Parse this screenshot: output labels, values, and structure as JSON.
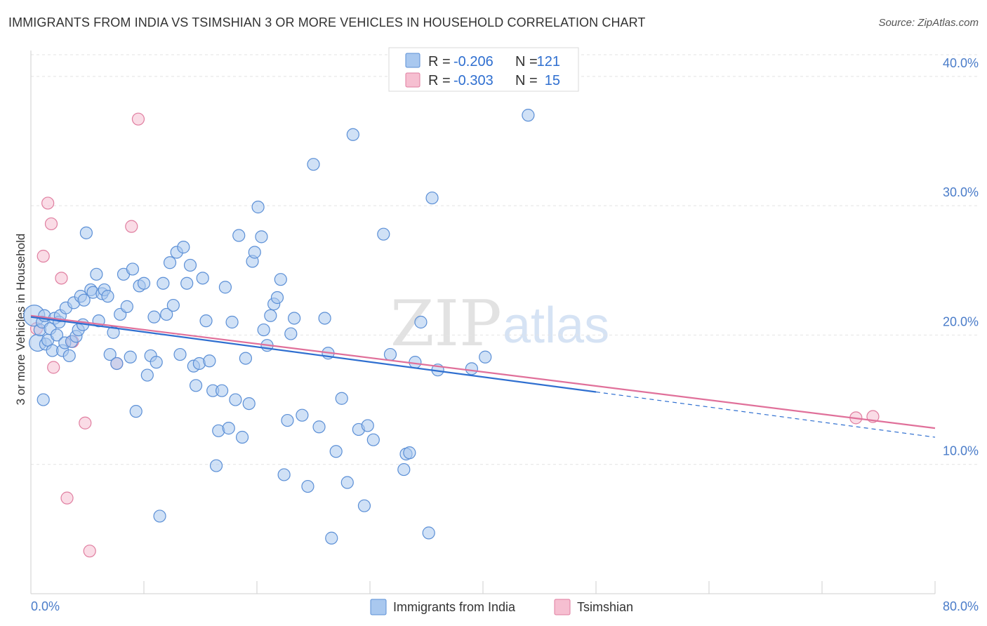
{
  "title": "IMMIGRANTS FROM INDIA VS TSIMSHIAN 3 OR MORE VEHICLES IN HOUSEHOLD CORRELATION CHART",
  "source": "Source: ZipAtlas.com",
  "watermark": {
    "zip": "ZIP",
    "atlas": "atlas"
  },
  "colors": {
    "india_fill": "#a9c8ef",
    "india_stroke": "#5b8fd6",
    "india_line": "#2f6fd0",
    "tsim_fill": "#f6bfd1",
    "tsim_stroke": "#e07ea0",
    "tsim_line": "#e0709a",
    "grid": "#e3e3e3",
    "axis_label": "#4a7cc9"
  },
  "stats_box": {
    "rows": [
      {
        "r_label": "R =",
        "r_value": "-0.206",
        "n_label": "N =",
        "n_value": "121"
      },
      {
        "r_label": "R =",
        "r_value": "-0.303",
        "n_label": "N =",
        "n_value": "15"
      }
    ]
  },
  "chart_data": {
    "type": "scatter",
    "xlabel": "",
    "ylabel": "3 or more Vehicles in Household",
    "xlim": [
      0,
      80
    ],
    "ylim": [
      0,
      42
    ],
    "x_tick_labels": [
      "0.0%",
      "80.0%"
    ],
    "y_ticks": [
      10,
      20,
      30,
      40
    ],
    "y_tick_labels": [
      "10.0%",
      "20.0%",
      "30.0%",
      "40.0%"
    ],
    "grid": true,
    "legend_position": "bottom-center",
    "legend": [
      "Immigrants from India",
      "Tsimshian"
    ],
    "series": [
      {
        "name": "Immigrants from India",
        "trend": {
          "x0": 0,
          "y0": 21.4,
          "x1": 50,
          "y1": 15.6,
          "dashed_to_x": 80,
          "dashed_to_y": 12.1
        },
        "points": [
          [
            0.3,
            21.5,
            3
          ],
          [
            0.6,
            19.4,
            2
          ],
          [
            0.8,
            20.4,
            1
          ],
          [
            1.0,
            21.0,
            1
          ],
          [
            1.1,
            15.0,
            1
          ],
          [
            1.2,
            21.5,
            1
          ],
          [
            1.3,
            19.3,
            1
          ],
          [
            1.5,
            19.6,
            1
          ],
          [
            1.7,
            20.5,
            1
          ],
          [
            1.9,
            18.8,
            1
          ],
          [
            2.1,
            21.3,
            1
          ],
          [
            2.3,
            20.0,
            1
          ],
          [
            2.5,
            21.0,
            1
          ],
          [
            2.6,
            21.5,
            1
          ],
          [
            2.8,
            18.8,
            1
          ],
          [
            3.0,
            19.4,
            1
          ],
          [
            3.1,
            22.1,
            1
          ],
          [
            3.4,
            18.4,
            1
          ],
          [
            3.6,
            19.5,
            1
          ],
          [
            3.8,
            22.5,
            1
          ],
          [
            4.0,
            19.9,
            1
          ],
          [
            4.2,
            20.4,
            1
          ],
          [
            4.4,
            23.0,
            1
          ],
          [
            4.6,
            20.8,
            1
          ],
          [
            4.7,
            22.7,
            1
          ],
          [
            4.9,
            27.9,
            1
          ],
          [
            5.3,
            23.5,
            1
          ],
          [
            5.5,
            23.3,
            1
          ],
          [
            5.8,
            24.7,
            1
          ],
          [
            6.0,
            21.1,
            1
          ],
          [
            6.3,
            23.2,
            1
          ],
          [
            6.5,
            23.5,
            1
          ],
          [
            6.8,
            23.0,
            1
          ],
          [
            7.0,
            18.5,
            1
          ],
          [
            7.3,
            20.2,
            1
          ],
          [
            7.6,
            17.8,
            1
          ],
          [
            7.9,
            21.6,
            1
          ],
          [
            8.2,
            24.7,
            1
          ],
          [
            8.5,
            22.2,
            1
          ],
          [
            8.8,
            18.3,
            1
          ],
          [
            9.0,
            25.1,
            1
          ],
          [
            9.3,
            14.1,
            1
          ],
          [
            9.6,
            23.8,
            1
          ],
          [
            10.0,
            24.0,
            1
          ],
          [
            10.3,
            16.9,
            1
          ],
          [
            10.6,
            18.4,
            1
          ],
          [
            10.9,
            21.4,
            1
          ],
          [
            11.1,
            17.9,
            1
          ],
          [
            11.4,
            6.0,
            1
          ],
          [
            11.7,
            24.0,
            1
          ],
          [
            12.0,
            21.6,
            1
          ],
          [
            12.3,
            25.6,
            1
          ],
          [
            12.6,
            22.3,
            1
          ],
          [
            12.9,
            26.4,
            1
          ],
          [
            13.2,
            18.5,
            1
          ],
          [
            13.5,
            26.8,
            1
          ],
          [
            13.8,
            24.0,
            1
          ],
          [
            14.1,
            25.4,
            1
          ],
          [
            14.4,
            17.6,
            1
          ],
          [
            14.6,
            16.1,
            1
          ],
          [
            14.9,
            17.8,
            1
          ],
          [
            15.2,
            24.4,
            1
          ],
          [
            15.5,
            21.1,
            1
          ],
          [
            15.8,
            18.0,
            1
          ],
          [
            16.1,
            15.7,
            1
          ],
          [
            16.4,
            9.9,
            1
          ],
          [
            16.6,
            12.6,
            1
          ],
          [
            16.9,
            15.7,
            1
          ],
          [
            17.2,
            23.7,
            1
          ],
          [
            17.5,
            12.8,
            1
          ],
          [
            17.8,
            21.0,
            1
          ],
          [
            18.1,
            15.0,
            1
          ],
          [
            18.4,
            27.7,
            1
          ],
          [
            18.7,
            12.1,
            1
          ],
          [
            19.0,
            18.2,
            1
          ],
          [
            19.3,
            14.7,
            1
          ],
          [
            19.6,
            25.7,
            1
          ],
          [
            19.8,
            26.4,
            1
          ],
          [
            20.1,
            29.9,
            1
          ],
          [
            20.4,
            27.6,
            1
          ],
          [
            20.6,
            20.4,
            1
          ],
          [
            20.9,
            19.2,
            1
          ],
          [
            21.2,
            21.5,
            1
          ],
          [
            21.5,
            22.4,
            1
          ],
          [
            21.8,
            22.9,
            1
          ],
          [
            22.1,
            24.3,
            1
          ],
          [
            22.4,
            9.2,
            1
          ],
          [
            22.7,
            13.4,
            1
          ],
          [
            23.0,
            20.1,
            1
          ],
          [
            23.3,
            21.3,
            1
          ],
          [
            24.0,
            13.8,
            1
          ],
          [
            24.5,
            8.3,
            1
          ],
          [
            25.0,
            33.2,
            1
          ],
          [
            25.5,
            12.9,
            1
          ],
          [
            26.0,
            21.3,
            1
          ],
          [
            26.3,
            18.6,
            1
          ],
          [
            26.6,
            4.3,
            1
          ],
          [
            27.0,
            11.0,
            1
          ],
          [
            27.5,
            15.1,
            1
          ],
          [
            28.0,
            8.6,
            1
          ],
          [
            28.5,
            35.5,
            1
          ],
          [
            29.0,
            12.7,
            1
          ],
          [
            29.5,
            6.8,
            1
          ],
          [
            29.8,
            13.0,
            1
          ],
          [
            30.3,
            11.9,
            1
          ],
          [
            31.2,
            27.8,
            1
          ],
          [
            31.8,
            18.5,
            1
          ],
          [
            33.0,
            9.6,
            1
          ],
          [
            33.2,
            10.8,
            1
          ],
          [
            33.5,
            10.9,
            1
          ],
          [
            34.0,
            17.9,
            1
          ],
          [
            34.5,
            21.0,
            1
          ],
          [
            35.2,
            4.7,
            1
          ],
          [
            35.5,
            30.6,
            1
          ],
          [
            36.0,
            17.3,
            1
          ],
          [
            39.0,
            17.4,
            1
          ],
          [
            40.2,
            18.3,
            1
          ],
          [
            44.0,
            37.0,
            1
          ]
        ]
      },
      {
        "name": "Tsimshian",
        "trend": {
          "x0": 0,
          "y0": 21.5,
          "x1": 80,
          "y1": 12.8
        },
        "points": [
          [
            0.5,
            20.5,
            1
          ],
          [
            1.1,
            26.1,
            1
          ],
          [
            1.5,
            30.2,
            1
          ],
          [
            1.8,
            28.6,
            1
          ],
          [
            2.0,
            17.5,
            1
          ],
          [
            2.7,
            24.4,
            1
          ],
          [
            3.2,
            7.4,
            1
          ],
          [
            3.7,
            19.5,
            1
          ],
          [
            4.8,
            13.2,
            1
          ],
          [
            5.2,
            3.3,
            1
          ],
          [
            7.6,
            17.8,
            1
          ],
          [
            8.9,
            28.4,
            1
          ],
          [
            9.5,
            36.7,
            1
          ],
          [
            73.0,
            13.6,
            1
          ],
          [
            74.5,
            13.7,
            1
          ]
        ]
      }
    ]
  }
}
